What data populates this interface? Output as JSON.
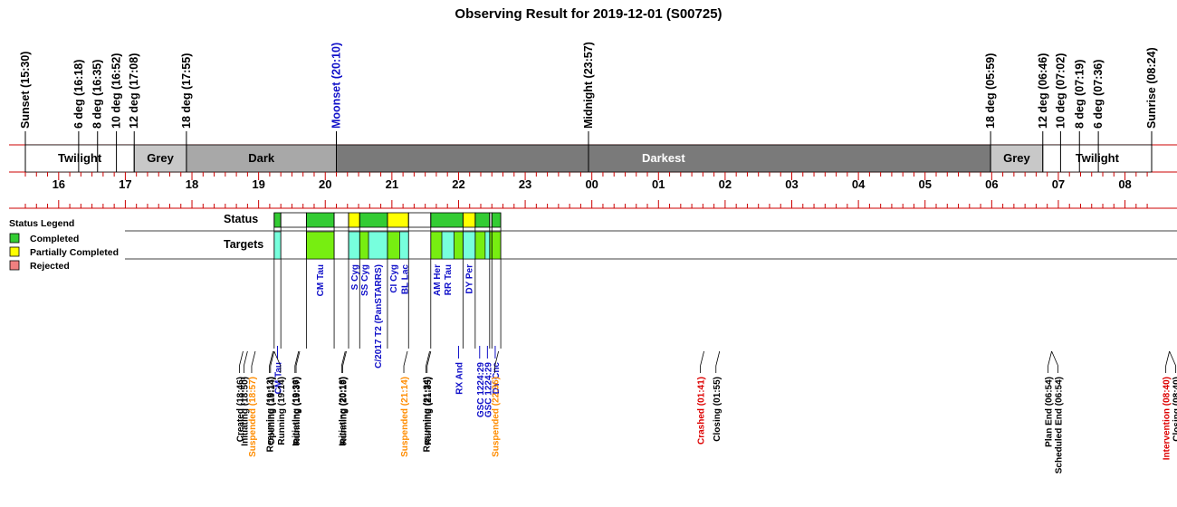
{
  "chart_data": {
    "type": "timeline",
    "title": "Observing Result for 2019-12-01 (S00725)",
    "time_range": [
      "15:30",
      "08:24"
    ],
    "colors": {
      "twilight": "#ffffff",
      "grey": "#c8c8c8",
      "dark": "#a8a8a8",
      "darkest": "#7a7a7a",
      "axis_red": "#cc0000",
      "completed": "#33cc33",
      "partial": "#ffff00",
      "rejected": "#f08080",
      "target_green": "#77ee11",
      "target_cyan": "#77ffdd",
      "label_blue": "#1010c8",
      "label_orange": "#ff8c00",
      "label_red": "#dd0000"
    },
    "sky_events": [
      {
        "label": "Sunset (15:30)",
        "time": "15:30",
        "color": "#000000"
      },
      {
        "label": "6 deg (16:18)",
        "time": "16:18",
        "color": "#000000"
      },
      {
        "label": "8 deg (16:35)",
        "time": "16:35",
        "color": "#000000"
      },
      {
        "label": "10 deg (16:52)",
        "time": "16:52",
        "color": "#000000"
      },
      {
        "label": "12 deg (17:08)",
        "time": "17:08",
        "color": "#000000"
      },
      {
        "label": "18 deg (17:55)",
        "time": "17:55",
        "color": "#000000"
      },
      {
        "label": "Moonset (20:10)",
        "time": "20:10",
        "color": "#1010c8"
      },
      {
        "label": "Midnight (23:57)",
        "time": "23:57",
        "color": "#000000"
      },
      {
        "label": "18 deg (05:59)",
        "time": "05:59",
        "color": "#000000"
      },
      {
        "label": "12 deg (06:46)",
        "time": "06:46",
        "color": "#000000"
      },
      {
        "label": "10 deg (07:02)",
        "time": "07:02",
        "color": "#000000"
      },
      {
        "label": "8 deg (07:19)",
        "time": "07:19",
        "color": "#000000"
      },
      {
        "label": "6 deg (07:36)",
        "time": "07:36",
        "color": "#000000"
      },
      {
        "label": "Sunrise (08:24)",
        "time": "08:24",
        "color": "#000000"
      }
    ],
    "bands": [
      {
        "label": "Twilight",
        "start": "15:30",
        "end": "17:08",
        "kind": "twilight"
      },
      {
        "label": "Grey",
        "start": "17:08",
        "end": "17:55",
        "kind": "grey"
      },
      {
        "label": "Dark",
        "start": "17:55",
        "end": "20:10",
        "kind": "dark"
      },
      {
        "label": "Darkest",
        "start": "20:10",
        "end": "05:59",
        "kind": "darkest"
      },
      {
        "label": "Grey",
        "start": "05:59",
        "end": "06:46",
        "kind": "grey"
      },
      {
        "label": "Twilight",
        "start": "06:46",
        "end": "08:24",
        "kind": "twilight"
      }
    ],
    "hour_ticks": [
      "16",
      "17",
      "18",
      "19",
      "20",
      "21",
      "22",
      "23",
      "00",
      "01",
      "02",
      "03",
      "04",
      "05",
      "06",
      "07",
      "08"
    ],
    "legend": {
      "title": "Status Legend",
      "items": [
        {
          "label": "Completed",
          "color": "#33cc33"
        },
        {
          "label": "Partially Completed",
          "color": "#ffff00"
        },
        {
          "label": "Rejected",
          "color": "#f08080"
        }
      ]
    },
    "rows": {
      "status": "Status",
      "targets": "Targets"
    },
    "status_blocks": [
      {
        "start": "19:14",
        "end": "19:20",
        "kind": "completed"
      },
      {
        "start": "19:20",
        "end": "19:43",
        "kind": "none"
      },
      {
        "start": "19:43",
        "end": "20:08",
        "kind": "completed"
      },
      {
        "start": "20:08",
        "end": "20:21",
        "kind": "none"
      },
      {
        "start": "20:21",
        "end": "20:31",
        "kind": "partial"
      },
      {
        "start": "20:31",
        "end": "20:56",
        "kind": "completed"
      },
      {
        "start": "20:56",
        "end": "21:15",
        "kind": "partial"
      },
      {
        "start": "21:15",
        "end": "21:35",
        "kind": "none"
      },
      {
        "start": "21:35",
        "end": "22:04",
        "kind": "completed"
      },
      {
        "start": "22:04",
        "end": "22:15",
        "kind": "partial"
      },
      {
        "start": "22:15",
        "end": "22:28",
        "kind": "completed"
      },
      {
        "start": "22:28",
        "end": "22:30",
        "kind": "none"
      },
      {
        "start": "22:30",
        "end": "22:38",
        "kind": "completed"
      }
    ],
    "target_blocks": [
      {
        "start": "19:14",
        "end": "19:20",
        "color": "cyan"
      },
      {
        "start": "19:43",
        "end": "20:08",
        "color": "green"
      },
      {
        "start": "20:21",
        "end": "20:31",
        "color": "cyan"
      },
      {
        "start": "20:31",
        "end": "20:39",
        "color": "green"
      },
      {
        "start": "20:39",
        "end": "20:56",
        "color": "cyan"
      },
      {
        "start": "20:56",
        "end": "21:07",
        "color": "green"
      },
      {
        "start": "21:07",
        "end": "21:15",
        "color": "cyan"
      },
      {
        "start": "21:35",
        "end": "21:45",
        "color": "green"
      },
      {
        "start": "21:45",
        "end": "21:56",
        "color": "cyan"
      },
      {
        "start": "21:56",
        "end": "22:04",
        "color": "green"
      },
      {
        "start": "22:04",
        "end": "22:15",
        "color": "cyan"
      },
      {
        "start": "22:15",
        "end": "22:24",
        "color": "green"
      },
      {
        "start": "22:24",
        "end": "22:28",
        "color": "cyan"
      },
      {
        "start": "22:28",
        "end": "22:30",
        "color": "green"
      },
      {
        "start": "22:30",
        "end": "22:38",
        "color": "green"
      }
    ],
    "targets_upper": [
      {
        "label": "CM Tau",
        "time": "19:55"
      },
      {
        "label": "S Cyg",
        "time": "20:26"
      },
      {
        "label": "SS Cyg",
        "time": "20:35"
      },
      {
        "label": "C/2017 T2 (PanSTARRS)",
        "time": "20:47"
      },
      {
        "label": "CI Cyg",
        "time": "21:01"
      },
      {
        "label": "BL Lac",
        "time": "21:11"
      },
      {
        "label": "AM Her",
        "time": "21:40"
      },
      {
        "label": "RR Tau",
        "time": "21:50"
      },
      {
        "label": "DY Per",
        "time": "22:09"
      }
    ],
    "targets_lower": [
      {
        "label": "CM Tau",
        "time": "19:17"
      },
      {
        "label": "RX And",
        "time": "22:00"
      },
      {
        "label": "GSC 1224:29",
        "time": "22:19"
      },
      {
        "label": "GSC 1224:29",
        "time": "22:26"
      },
      {
        "label": "DY Cnc",
        "time": "22:33"
      }
    ],
    "events": [
      {
        "label": "Created (18:46)",
        "time": "18:46",
        "color": "#000000"
      },
      {
        "label": "Initiating (18:50)",
        "time": "18:50",
        "color": "#000000"
      },
      {
        "label": "Suspended (18:57)",
        "time": "18:57",
        "color": "#ff8c00"
      },
      {
        "label": "Resuming (19:13)",
        "time": "19:13",
        "color": "#000000"
      },
      {
        "label": "Opening (19:14)",
        "time": "19:14",
        "color": "#000000"
      },
      {
        "label": "Running (19:14)",
        "time": "19:14",
        "color": "#000000"
      },
      {
        "label": "Initiating (19:36)",
        "time": "19:36",
        "color": "#000000"
      },
      {
        "label": "Running (19:37)",
        "time": "19:37",
        "color": "#000000"
      },
      {
        "label": "Initiating (20:18)",
        "time": "20:18",
        "color": "#000000"
      },
      {
        "label": "Running (20:19)",
        "time": "20:19",
        "color": "#000000"
      },
      {
        "label": "Suspended (21:14)",
        "time": "21:14",
        "color": "#ff8c00"
      },
      {
        "label": "Resuming (21:34)",
        "time": "21:34",
        "color": "#000000"
      },
      {
        "label": "Running (21:35)",
        "time": "21:35",
        "color": "#000000"
      },
      {
        "label": "Suspended (22:36)",
        "time": "22:36",
        "color": "#ff8c00"
      },
      {
        "label": "Crashed (01:41)",
        "time": "01:41",
        "color": "#dd0000"
      },
      {
        "label": "Closing (01:55)",
        "time": "01:55",
        "color": "#000000"
      },
      {
        "label": "Plan End (06:54)",
        "time": "06:54",
        "color": "#000000"
      },
      {
        "label": "Scheduled End (06:54)",
        "time": "06:54",
        "color": "#000000"
      },
      {
        "label": "Intervention (08:40)",
        "time": "08:40",
        "color": "#dd0000"
      },
      {
        "label": "Closing (08:40)",
        "time": "08:40",
        "color": "#000000"
      }
    ]
  }
}
